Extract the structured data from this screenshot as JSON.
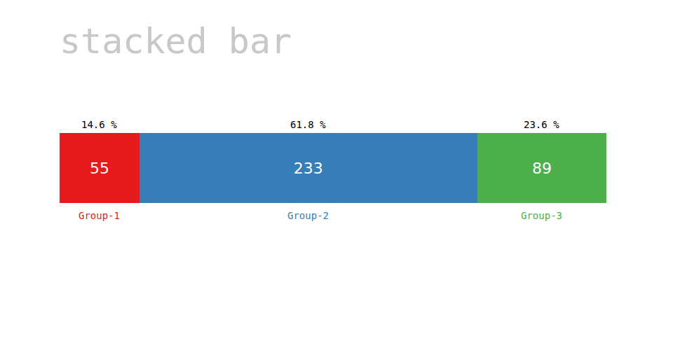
{
  "chart_data": {
    "type": "bar",
    "title": "stacked bar",
    "orientation": "horizontal",
    "stacked": true,
    "data_labels": true,
    "tick_labels": false,
    "categories": [
      null
    ],
    "xlim": [
      0,
      377
    ],
    "series": [
      {
        "name": "Group-1",
        "color": "#e41a1c",
        "values": [
          55
        ],
        "share_label": "14.6 %"
      },
      {
        "name": "Group-2",
        "color": "#377eb8",
        "values": [
          233
        ],
        "share_label": "61.8 %"
      },
      {
        "name": "Group-3",
        "color": "#4daf4a",
        "values": [
          89
        ],
        "share_label": "23.6 %"
      }
    ]
  }
}
